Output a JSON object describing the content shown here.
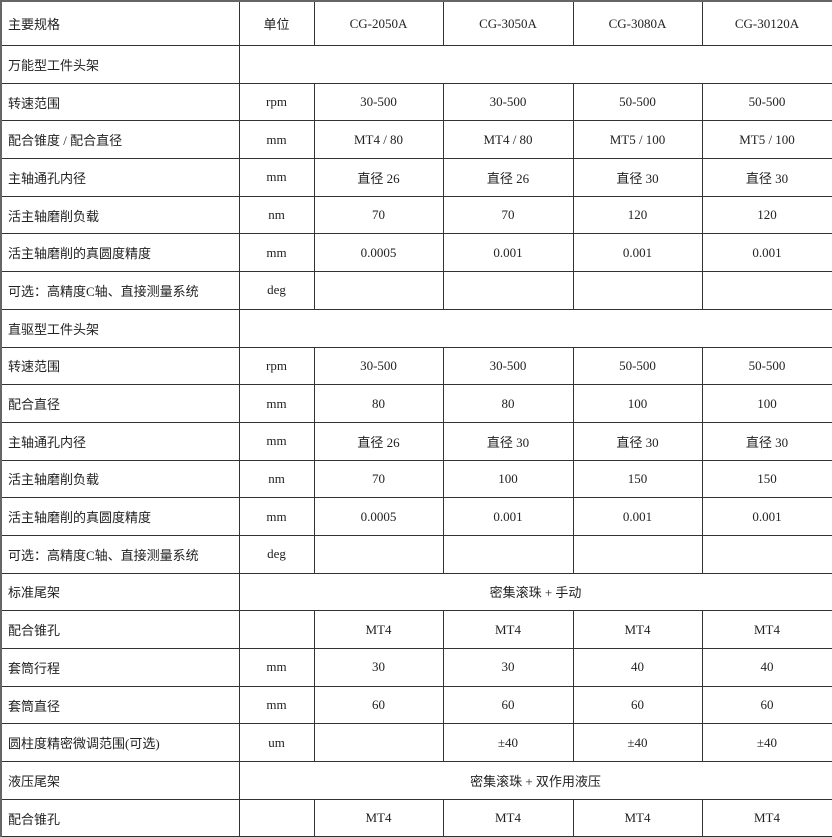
{
  "header": {
    "label": "主要规格",
    "unit": "单位",
    "models": [
      "CG-2050A",
      "CG-3050A",
      "CG-3080A",
      "CG-30120A"
    ]
  },
  "rows": [
    {
      "label": "万能型工件头架",
      "span": ""
    },
    {
      "label": "转速范围",
      "unit": "rpm",
      "values": [
        "30-500",
        "30-500",
        "50-500",
        "50-500"
      ]
    },
    {
      "label": "配合锥度 / 配合直径",
      "unit": "mm",
      "values": [
        "MT4 / 80",
        "MT4 / 80",
        "MT5 / 100",
        "MT5 / 100"
      ]
    },
    {
      "label": "主轴通孔内径",
      "unit": "mm",
      "values": [
        "直径 26",
        "直径 26",
        "直径 30",
        "直径 30"
      ]
    },
    {
      "label": "活主轴磨削负载",
      "unit": "nm",
      "values": [
        "70",
        "70",
        "120",
        "120"
      ]
    },
    {
      "label": "活主轴磨削的真圆度精度",
      "unit": "mm",
      "values": [
        "0.0005",
        "0.001",
        "0.001",
        "0.001"
      ]
    },
    {
      "label": "可选：高精度C轴、直接测量系统",
      "unit": "deg",
      "values": [
        "",
        "",
        "",
        ""
      ]
    },
    {
      "label": "直驱型工件头架",
      "span": ""
    },
    {
      "label": "转速范围",
      "unit": "rpm",
      "values": [
        "30-500",
        "30-500",
        "50-500",
        "50-500"
      ]
    },
    {
      "label": "配合直径",
      "unit": "mm",
      "values": [
        "80",
        "80",
        "100",
        "100"
      ]
    },
    {
      "label": "主轴通孔内径",
      "unit": "mm",
      "values": [
        "直径 26",
        "直径 30",
        "直径 30",
        "直径 30"
      ]
    },
    {
      "label": "活主轴磨削负载",
      "unit": "nm",
      "values": [
        "70",
        "100",
        "150",
        "150"
      ]
    },
    {
      "label": "活主轴磨削的真圆度精度",
      "unit": "mm",
      "values": [
        "0.0005",
        "0.001",
        "0.001",
        "0.001"
      ]
    },
    {
      "label": "可选：高精度C轴、直接测量系统",
      "unit": "deg",
      "values": [
        "",
        "",
        "",
        ""
      ]
    },
    {
      "label": "标准尾架",
      "span": "密集滚珠 + 手动"
    },
    {
      "label": "配合锥孔",
      "unit": "",
      "values": [
        "MT4",
        "MT4",
        "MT4",
        "MT4"
      ]
    },
    {
      "label": "套筒行程",
      "unit": "mm",
      "values": [
        "30",
        "30",
        "40",
        "40"
      ]
    },
    {
      "label": "套筒直径",
      "unit": "mm",
      "values": [
        "60",
        "60",
        "60",
        "60"
      ]
    },
    {
      "label": "圆柱度精密微调范围(可选)",
      "unit": "um",
      "values": [
        "",
        "±40",
        "±40",
        "±40"
      ]
    },
    {
      "label": "液压尾架",
      "span": "密集滚珠 + 双作用液压"
    },
    {
      "label": "配合锥孔",
      "unit": "",
      "values": [
        "MT4",
        "MT4",
        "MT4",
        "MT4"
      ]
    }
  ]
}
